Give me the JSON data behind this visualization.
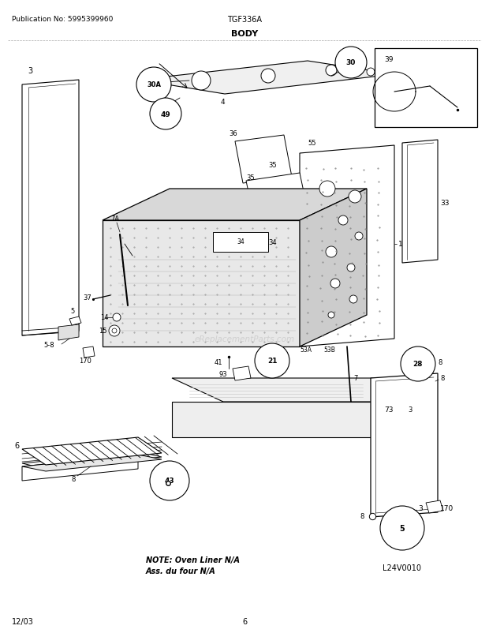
{
  "title": "BODY",
  "pub_no": "Publication No: 5995399960",
  "model": "TGF336A",
  "date": "12/03",
  "page": "6",
  "watermark": "eReplacementParts.com",
  "note_line1": "NOTE: Oven Liner N/A",
  "note_line2": "Ass. du four N/A",
  "logo": "L24V0010",
  "bg_color": "#ffffff",
  "lc": "#000000",
  "fig_w": 6.2,
  "fig_h": 8.03,
  "dpi": 100
}
